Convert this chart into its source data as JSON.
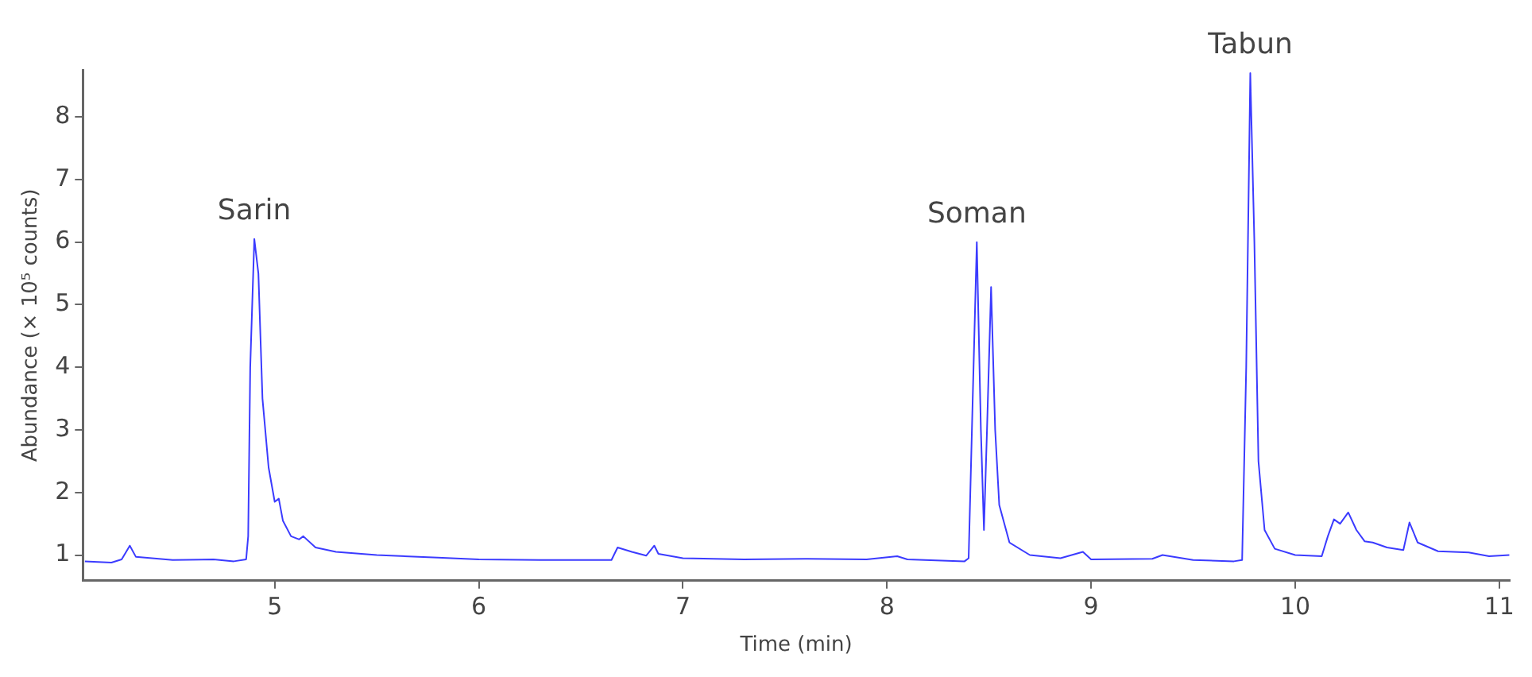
{
  "chart_data": {
    "type": "line",
    "xlabel": "Time (min)",
    "ylabel": "Abundance (× 10⁵ counts)",
    "xlim": [
      4.06,
      11.05
    ],
    "ylim": [
      0.59,
      8.75
    ],
    "xticks": [
      5,
      6,
      7,
      8,
      9,
      10,
      11
    ],
    "yticks": [
      1,
      2,
      3,
      4,
      5,
      6,
      7,
      8
    ],
    "grid": false,
    "legend": false,
    "marker": "none",
    "line_style": "solid",
    "series": [
      {
        "color": "#3b3bff",
        "x": [
          4.07,
          4.2,
          4.25,
          4.29,
          4.32,
          4.5,
          4.7,
          4.8,
          4.86,
          4.87,
          4.88,
          4.9,
          4.92,
          4.94,
          4.97,
          5.0,
          5.02,
          5.04,
          5.08,
          5.12,
          5.14,
          5.2,
          5.3,
          5.5,
          5.8,
          6.0,
          6.3,
          6.5,
          6.65,
          6.68,
          6.75,
          6.82,
          6.86,
          6.88,
          7.0,
          7.3,
          7.6,
          7.9,
          8.05,
          8.1,
          8.38,
          8.4,
          8.42,
          8.44,
          8.46,
          8.475,
          8.49,
          8.51,
          8.53,
          8.55,
          8.6,
          8.7,
          8.85,
          8.96,
          9.0,
          9.3,
          9.35,
          9.5,
          9.7,
          9.74,
          9.76,
          9.78,
          9.8,
          9.82,
          9.85,
          9.9,
          10.0,
          10.13,
          10.16,
          10.19,
          10.22,
          10.26,
          10.3,
          10.34,
          10.38,
          10.45,
          10.53,
          10.56,
          10.6,
          10.7,
          10.85,
          10.95,
          11.05
        ],
        "values": [
          0.9,
          0.88,
          0.93,
          1.15,
          0.97,
          0.92,
          0.93,
          0.9,
          0.93,
          1.3,
          4.0,
          6.05,
          5.5,
          3.5,
          2.4,
          1.85,
          1.9,
          1.55,
          1.3,
          1.25,
          1.3,
          1.12,
          1.05,
          1.0,
          0.96,
          0.93,
          0.92,
          0.92,
          0.92,
          1.12,
          1.05,
          0.99,
          1.15,
          1.02,
          0.95,
          0.93,
          0.94,
          0.93,
          0.98,
          0.93,
          0.9,
          0.95,
          3.5,
          6.0,
          3.0,
          1.4,
          3.0,
          5.28,
          3.0,
          1.8,
          1.2,
          1.0,
          0.95,
          1.05,
          0.93,
          0.94,
          1.0,
          0.92,
          0.9,
          0.92,
          4.0,
          8.7,
          6.0,
          2.5,
          1.4,
          1.1,
          1.0,
          0.98,
          1.3,
          1.57,
          1.5,
          1.68,
          1.4,
          1.22,
          1.2,
          1.12,
          1.08,
          1.52,
          1.2,
          1.06,
          1.04,
          0.98,
          1.0
        ]
      }
    ],
    "annotations": [
      {
        "text": "Sarin",
        "x": 4.9,
        "y": 6.05
      },
      {
        "text": "Soman",
        "x": 8.44,
        "y": 6.0
      },
      {
        "text": "Tabun",
        "x": 9.78,
        "y": 8.7
      }
    ]
  }
}
